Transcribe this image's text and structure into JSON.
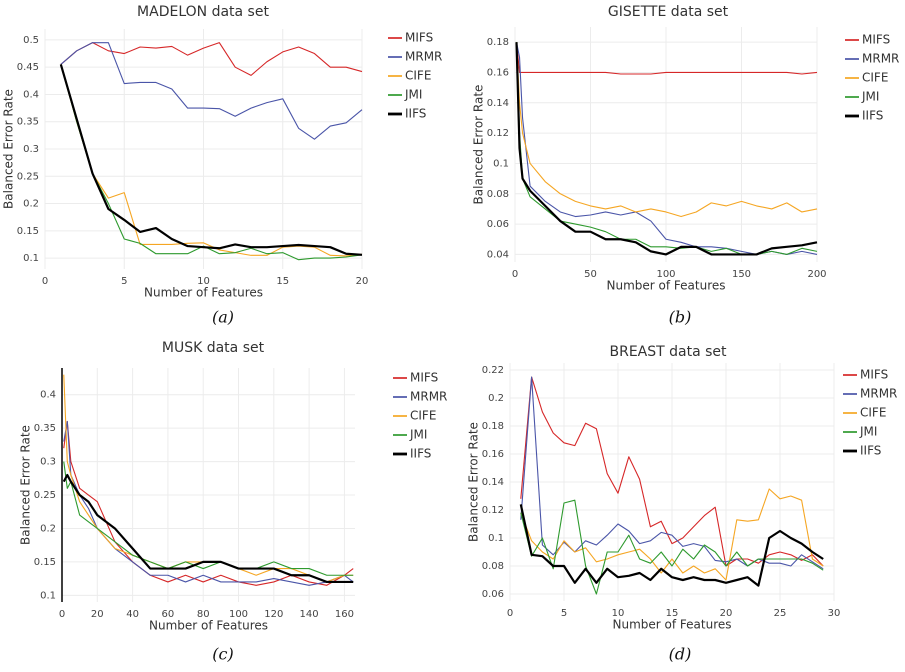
{
  "chart_data": [
    {
      "type": "line",
      "title": "MADELON data set",
      "x_label": "Number of Features",
      "y_label": "Balanced Error Rate",
      "caption": "(a)",
      "x": [
        1,
        2,
        3,
        4,
        5,
        6,
        7,
        8,
        9,
        10,
        11,
        12,
        13,
        14,
        15,
        16,
        17,
        18,
        19,
        20
      ],
      "xlim": [
        0,
        20
      ],
      "xticks": [
        0,
        5,
        10,
        15,
        20
      ],
      "ylim": [
        0.08,
        0.52
      ],
      "yticks": [
        0.1,
        0.15,
        0.2,
        0.25,
        0.3,
        0.35,
        0.4,
        0.45,
        0.5
      ],
      "grid": true,
      "series": [
        {
          "name": "MIFS",
          "color": "#d62728",
          "values": [
            0.455,
            0.48,
            0.495,
            0.48,
            0.475,
            0.487,
            0.485,
            0.488,
            0.472,
            0.485,
            0.495,
            0.45,
            0.435,
            0.46,
            0.478,
            0.487,
            0.475,
            0.45,
            0.45,
            0.442
          ]
        },
        {
          "name": "MRMR",
          "color": "#4a55a8",
          "values": [
            0.455,
            0.48,
            0.495,
            0.495,
            0.42,
            0.422,
            0.422,
            0.41,
            0.375,
            0.375,
            0.374,
            0.36,
            0.375,
            0.385,
            0.392,
            0.338,
            0.318,
            0.342,
            0.348,
            0.372
          ]
        },
        {
          "name": "CIFE",
          "color": "#f5a623",
          "values": [
            0.455,
            0.35,
            0.255,
            0.21,
            0.22,
            0.125,
            0.125,
            0.125,
            0.127,
            0.128,
            0.115,
            0.11,
            0.105,
            0.105,
            0.12,
            0.122,
            0.12,
            0.105,
            0.104,
            0.107
          ]
        },
        {
          "name": "JMI",
          "color": "#2e9a2e",
          "values": [
            0.455,
            0.35,
            0.255,
            0.2,
            0.135,
            0.127,
            0.108,
            0.108,
            0.108,
            0.122,
            0.108,
            0.11,
            0.118,
            0.108,
            0.11,
            0.097,
            0.1,
            0.1,
            0.102,
            0.106
          ]
        },
        {
          "name": "IIFS",
          "color": "#000000",
          "values": [
            0.455,
            0.355,
            0.255,
            0.19,
            0.17,
            0.148,
            0.155,
            0.135,
            0.122,
            0.12,
            0.118,
            0.125,
            0.12,
            0.12,
            0.122,
            0.124,
            0.122,
            0.12,
            0.108,
            0.106
          ]
        }
      ]
    },
    {
      "type": "line",
      "title": "GISETTE data set",
      "x_label": "Number of Features",
      "y_label": "Balanced Error Rate",
      "caption": "(b)",
      "x": [
        1,
        3,
        5,
        10,
        20,
        30,
        40,
        50,
        60,
        70,
        80,
        90,
        100,
        110,
        120,
        130,
        140,
        150,
        160,
        170,
        180,
        190,
        200
      ],
      "xlim": [
        0,
        200
      ],
      "xticks": [
        0,
        50,
        100,
        150,
        200
      ],
      "ylim": [
        0.035,
        0.19
      ],
      "yticks": [
        0.04,
        0.06,
        0.08,
        0.1,
        0.12,
        0.14,
        0.16,
        0.18
      ],
      "grid": true,
      "series": [
        {
          "name": "MIFS",
          "color": "#d62728",
          "values": [
            0.18,
            0.16,
            0.16,
            0.16,
            0.16,
            0.16,
            0.16,
            0.16,
            0.16,
            0.159,
            0.159,
            0.159,
            0.16,
            0.16,
            0.16,
            0.16,
            0.16,
            0.16,
            0.16,
            0.16,
            0.16,
            0.159,
            0.16
          ]
        },
        {
          "name": "MRMR",
          "color": "#4a55a8",
          "values": [
            0.18,
            0.17,
            0.13,
            0.085,
            0.075,
            0.068,
            0.065,
            0.066,
            0.068,
            0.066,
            0.068,
            0.062,
            0.05,
            0.048,
            0.045,
            0.045,
            0.044,
            0.042,
            0.04,
            0.042,
            0.04,
            0.042,
            0.04
          ]
        },
        {
          "name": "CIFE",
          "color": "#f5a623",
          "values": [
            0.18,
            0.14,
            0.12,
            0.1,
            0.088,
            0.08,
            0.075,
            0.072,
            0.07,
            0.072,
            0.068,
            0.07,
            0.068,
            0.065,
            0.068,
            0.074,
            0.072,
            0.075,
            0.072,
            0.07,
            0.074,
            0.068,
            0.07
          ]
        },
        {
          "name": "JMI",
          "color": "#2e9a2e",
          "values": [
            0.18,
            0.12,
            0.09,
            0.078,
            0.07,
            0.062,
            0.06,
            0.058,
            0.055,
            0.05,
            0.05,
            0.045,
            0.045,
            0.044,
            0.045,
            0.042,
            0.044,
            0.04,
            0.04,
            0.042,
            0.04,
            0.044,
            0.042
          ]
        },
        {
          "name": "IIFS",
          "color": "#000000",
          "values": [
            0.18,
            0.11,
            0.09,
            0.082,
            0.072,
            0.062,
            0.055,
            0.055,
            0.05,
            0.05,
            0.048,
            0.042,
            0.04,
            0.045,
            0.045,
            0.04,
            0.04,
            0.04,
            0.04,
            0.044,
            0.045,
            0.046,
            0.048
          ]
        }
      ]
    },
    {
      "type": "line",
      "title": "MUSK data set",
      "x_label": "Number of Features",
      "y_label": "Balanced Error Rate",
      "caption": "(c)",
      "x": [
        1,
        3,
        5,
        10,
        15,
        20,
        30,
        40,
        50,
        60,
        70,
        80,
        90,
        100,
        110,
        120,
        130,
        140,
        150,
        160,
        165
      ],
      "xlim": [
        0,
        166
      ],
      "xticks": [
        0,
        20,
        40,
        60,
        80,
        100,
        120,
        140,
        160
      ],
      "ylim": [
        0.09,
        0.44
      ],
      "yticks": [
        0.1,
        0.15,
        0.2,
        0.25,
        0.3,
        0.35,
        0.4
      ],
      "grid": true,
      "series": [
        {
          "name": "MIFS",
          "color": "#d62728",
          "values": [
            0.32,
            0.36,
            0.3,
            0.26,
            0.25,
            0.24,
            0.18,
            0.15,
            0.13,
            0.12,
            0.13,
            0.12,
            0.13,
            0.12,
            0.115,
            0.12,
            0.13,
            0.12,
            0.115,
            0.13,
            0.14
          ]
        },
        {
          "name": "MRMR",
          "color": "#4a55a8",
          "values": [
            0.33,
            0.36,
            0.28,
            0.25,
            0.23,
            0.2,
            0.17,
            0.15,
            0.13,
            0.13,
            0.12,
            0.13,
            0.12,
            0.12,
            0.12,
            0.125,
            0.12,
            0.115,
            0.12,
            0.13,
            0.12
          ]
        },
        {
          "name": "CIFE",
          "color": "#f5a623",
          "values": [
            0.43,
            0.3,
            0.28,
            0.24,
            0.22,
            0.2,
            0.17,
            0.16,
            0.15,
            0.14,
            0.15,
            0.15,
            0.15,
            0.14,
            0.13,
            0.14,
            0.14,
            0.13,
            0.12,
            0.13,
            0.13
          ]
        },
        {
          "name": "JMI",
          "color": "#2e9a2e",
          "values": [
            0.3,
            0.26,
            0.27,
            0.22,
            0.21,
            0.2,
            0.18,
            0.16,
            0.15,
            0.14,
            0.15,
            0.14,
            0.15,
            0.14,
            0.14,
            0.15,
            0.14,
            0.14,
            0.13,
            0.13,
            0.13
          ]
        },
        {
          "name": "IIFS",
          "color": "#000000",
          "values": [
            0.27,
            0.28,
            0.27,
            0.25,
            0.24,
            0.22,
            0.2,
            0.17,
            0.14,
            0.14,
            0.14,
            0.15,
            0.15,
            0.14,
            0.14,
            0.14,
            0.13,
            0.13,
            0.12,
            0.12,
            0.12
          ]
        }
      ]
    },
    {
      "type": "line",
      "title": "BREAST data set",
      "x_label": "Number of Features",
      "y_label": "Balanced Error Rate",
      "caption": "(d)",
      "x": [
        1,
        2,
        3,
        4,
        5,
        6,
        7,
        8,
        9,
        10,
        11,
        12,
        13,
        14,
        15,
        16,
        17,
        18,
        19,
        20,
        21,
        22,
        23,
        24,
        25,
        26,
        27,
        28,
        29
      ],
      "xlim": [
        0,
        30
      ],
      "xticks": [
        0,
        5,
        10,
        15,
        20,
        25,
        30
      ],
      "ylim": [
        0.055,
        0.225
      ],
      "yticks": [
        0.06,
        0.08,
        0.1,
        0.12,
        0.14,
        0.16,
        0.18,
        0.2,
        0.22
      ],
      "grid": true,
      "series": [
        {
          "name": "MIFS",
          "color": "#d62728",
          "values": [
            0.128,
            0.215,
            0.19,
            0.175,
            0.168,
            0.166,
            0.182,
            0.178,
            0.146,
            0.132,
            0.158,
            0.142,
            0.108,
            0.112,
            0.096,
            0.1,
            0.108,
            0.116,
            0.122,
            0.08,
            0.085,
            0.085,
            0.082,
            0.088,
            0.09,
            0.088,
            0.084,
            0.088,
            0.08
          ]
        },
        {
          "name": "MRMR",
          "color": "#4a55a8",
          "values": [
            0.113,
            0.215,
            0.095,
            0.088,
            0.097,
            0.09,
            0.098,
            0.095,
            0.102,
            0.11,
            0.105,
            0.096,
            0.098,
            0.104,
            0.102,
            0.094,
            0.096,
            0.094,
            0.084,
            0.083,
            0.085,
            0.08,
            0.085,
            0.082,
            0.082,
            0.08,
            0.088,
            0.083,
            0.078
          ]
        },
        {
          "name": "CIFE",
          "color": "#f5a623",
          "values": [
            0.118,
            0.098,
            0.09,
            0.085,
            0.098,
            0.09,
            0.093,
            0.083,
            0.085,
            0.088,
            0.09,
            0.092,
            0.085,
            0.075,
            0.085,
            0.075,
            0.08,
            0.075,
            0.078,
            0.07,
            0.113,
            0.112,
            0.113,
            0.135,
            0.128,
            0.13,
            0.127,
            0.085,
            0.08
          ]
        },
        {
          "name": "JMI",
          "color": "#2e9a2e",
          "values": [
            0.118,
            0.087,
            0.1,
            0.078,
            0.125,
            0.127,
            0.08,
            0.06,
            0.09,
            0.09,
            0.102,
            0.085,
            0.082,
            0.09,
            0.08,
            0.092,
            0.085,
            0.095,
            0.09,
            0.08,
            0.09,
            0.08,
            0.085,
            0.085,
            0.085,
            0.085,
            0.085,
            0.082,
            0.077
          ]
        },
        {
          "name": "IIFS",
          "color": "#000000",
          "values": [
            0.124,
            0.088,
            0.087,
            0.08,
            0.08,
            0.068,
            0.078,
            0.068,
            0.078,
            0.072,
            0.073,
            0.075,
            0.07,
            0.078,
            0.072,
            0.07,
            0.072,
            0.07,
            0.07,
            0.068,
            0.07,
            0.072,
            0.066,
            0.1,
            0.105,
            0.1,
            0.096,
            0.09,
            0.085
          ]
        }
      ]
    }
  ]
}
